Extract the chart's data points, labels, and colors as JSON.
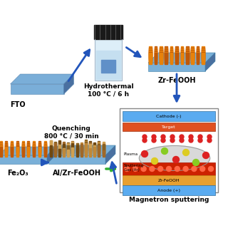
{
  "background_color": "#ffffff",
  "fto_color": "#7aaed8",
  "fto_label": "FTO",
  "nanorod_color_orange": "#e8820a",
  "nanorod_color_dark": "#c05808",
  "substrate_color": "#7ab0d8",
  "hydrothermal_label": "Hydrothermal\n100 °C / 6 h",
  "zr_feooh_label": "Zr-FeOOH",
  "quenching_label": "Quenching\n800 °C / 30 min",
  "fe2o3_label": "Fe₂O₃",
  "al_zr_feooh_label": "Al/Zr-FeOOH",
  "magnetron_label": "Magnetron sputtering",
  "arrow_color": "#2255bb",
  "cathode_color": "#5aabf0",
  "target_color": "#e05020",
  "anode_color": "#5aabf0",
  "zr_feooh_layer_color": "#e8a030",
  "green_arrow_color": "#30b030"
}
